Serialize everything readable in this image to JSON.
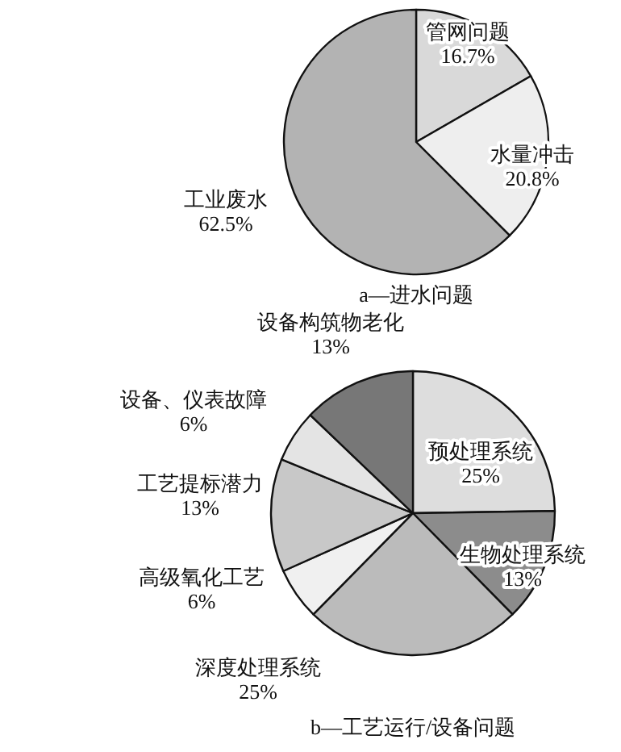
{
  "chart_data": [
    {
      "type": "pie",
      "title": "a—进水问题",
      "categories": [
        "管网问题",
        "水量冲击",
        "工业废水"
      ],
      "values": [
        16.7,
        20.8,
        62.5
      ],
      "value_labels": [
        "16.7%",
        "20.8%",
        "62.5%"
      ],
      "colors": [
        "#d9d9d9",
        "#eeeeee",
        "#b3b3b3"
      ],
      "data_labels": true
    },
    {
      "type": "pie",
      "title": "b—工艺运行/设备问题",
      "categories": [
        "预处理系统",
        "生物处理系统",
        "深度处理系统",
        "高级氧化工艺",
        "工艺提标潜力",
        "设备、仪表故障",
        "设备构筑物老化"
      ],
      "values": [
        25,
        13,
        25,
        6,
        13,
        6,
        13
      ],
      "value_labels": [
        "25%",
        "13%",
        "25%",
        "6%",
        "13%",
        "6%",
        "13%"
      ],
      "colors": [
        "#dddddd",
        "#8c8c8c",
        "#bbbbbb",
        "#f0f0f0",
        "#c8c8c8",
        "#e4e4e4",
        "#777777"
      ],
      "data_labels": true
    }
  ]
}
